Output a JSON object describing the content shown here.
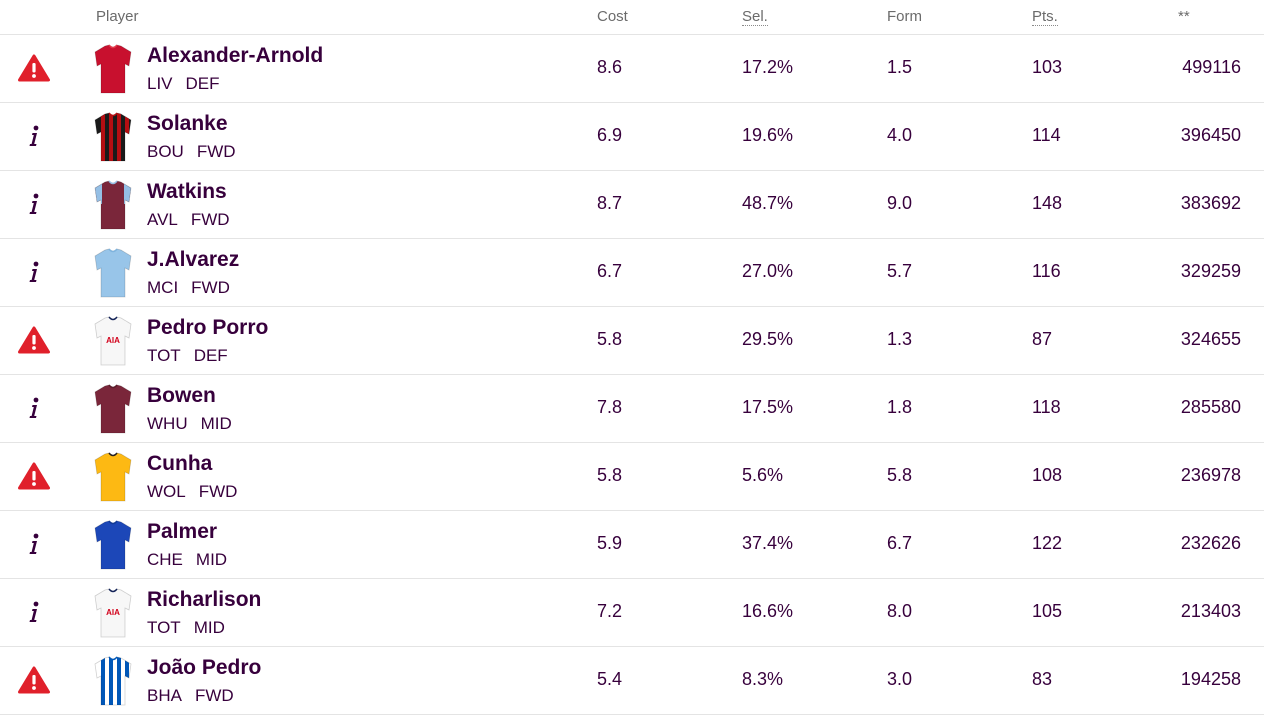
{
  "headers": {
    "player": "Player",
    "cost": "Cost",
    "sel": "Sel.",
    "form": "Form",
    "pts": "Pts.",
    "stat": "**"
  },
  "colors": {
    "text": "#37003c",
    "alert": "#e0202b",
    "border": "#e4e4e4"
  },
  "rows": [
    {
      "status": "alert",
      "status_icon": "warning-icon",
      "name": "Alexander-Arnold",
      "team": "LIV",
      "position": "DEF",
      "cost": "8.6",
      "sel": "17.2%",
      "form": "1.5",
      "pts": "103",
      "stat": "499116",
      "shirt": {
        "primary": "#c8102e",
        "secondary": "#e23a4b",
        "pattern": "solid",
        "logo": ""
      }
    },
    {
      "status": "info",
      "status_icon": "info-icon",
      "name": "Solanke",
      "team": "BOU",
      "position": "FWD",
      "cost": "6.9",
      "sel": "19.6%",
      "form": "4.0",
      "pts": "114",
      "stat": "396450",
      "shirt": {
        "primary": "#1a1a1a",
        "secondary": "#b50e12",
        "pattern": "stripes",
        "logo": ""
      }
    },
    {
      "status": "info",
      "status_icon": "info-icon",
      "name": "Watkins",
      "team": "AVL",
      "position": "FWD",
      "cost": "8.7",
      "sel": "48.7%",
      "form": "9.0",
      "pts": "148",
      "stat": "383692",
      "shirt": {
        "primary": "#7a263a",
        "secondary": "#95bfe5",
        "pattern": "sleeves",
        "logo": ""
      }
    },
    {
      "status": "info",
      "status_icon": "info-icon",
      "name": "J.Alvarez",
      "team": "MCI",
      "position": "FWD",
      "cost": "6.7",
      "sel": "27.0%",
      "form": "5.7",
      "pts": "116",
      "stat": "329259",
      "shirt": {
        "primary": "#98c5e9",
        "secondary": "#7fb3dd",
        "pattern": "solid",
        "logo": ""
      }
    },
    {
      "status": "alert",
      "status_icon": "warning-icon",
      "name": "Pedro Porro",
      "team": "TOT",
      "position": "DEF",
      "cost": "5.8",
      "sel": "29.5%",
      "form": "1.3",
      "pts": "87",
      "stat": "324655",
      "shirt": {
        "primary": "#f7f7f7",
        "secondary": "#132257",
        "pattern": "solid",
        "logo": "AIA"
      }
    },
    {
      "status": "info",
      "status_icon": "info-icon",
      "name": "Bowen",
      "team": "WHU",
      "position": "MID",
      "cost": "7.8",
      "sel": "17.5%",
      "form": "1.8",
      "pts": "118",
      "stat": "285580",
      "shirt": {
        "primary": "#7a263a",
        "secondary": "#5a1d2b",
        "pattern": "solid",
        "logo": ""
      }
    },
    {
      "status": "alert",
      "status_icon": "warning-icon",
      "name": "Cunha",
      "team": "WOL",
      "position": "FWD",
      "cost": "5.8",
      "sel": "5.6%",
      "form": "5.8",
      "pts": "108",
      "stat": "236978",
      "shirt": {
        "primary": "#fdb913",
        "secondary": "#231f20",
        "pattern": "solid",
        "logo": ""
      }
    },
    {
      "status": "info",
      "status_icon": "info-icon",
      "name": "Palmer",
      "team": "CHE",
      "position": "MID",
      "cost": "5.9",
      "sel": "37.4%",
      "form": "6.7",
      "pts": "122",
      "stat": "232626",
      "shirt": {
        "primary": "#1c47b8",
        "secondary": "#123a96",
        "pattern": "solid",
        "logo": ""
      }
    },
    {
      "status": "info",
      "status_icon": "info-icon",
      "name": "Richarlison",
      "team": "TOT",
      "position": "MID",
      "cost": "7.2",
      "sel": "16.6%",
      "form": "8.0",
      "pts": "105",
      "stat": "213403",
      "shirt": {
        "primary": "#f7f7f7",
        "secondary": "#132257",
        "pattern": "solid",
        "logo": "AIA"
      }
    },
    {
      "status": "alert",
      "status_icon": "warning-icon",
      "name": "João Pedro",
      "team": "BHA",
      "position": "FWD",
      "cost": "5.4",
      "sel": "8.3%",
      "form": "3.0",
      "pts": "83",
      "stat": "194258",
      "shirt": {
        "primary": "#ffffff",
        "secondary": "#0057b8",
        "pattern": "stripes",
        "logo": ""
      }
    }
  ]
}
